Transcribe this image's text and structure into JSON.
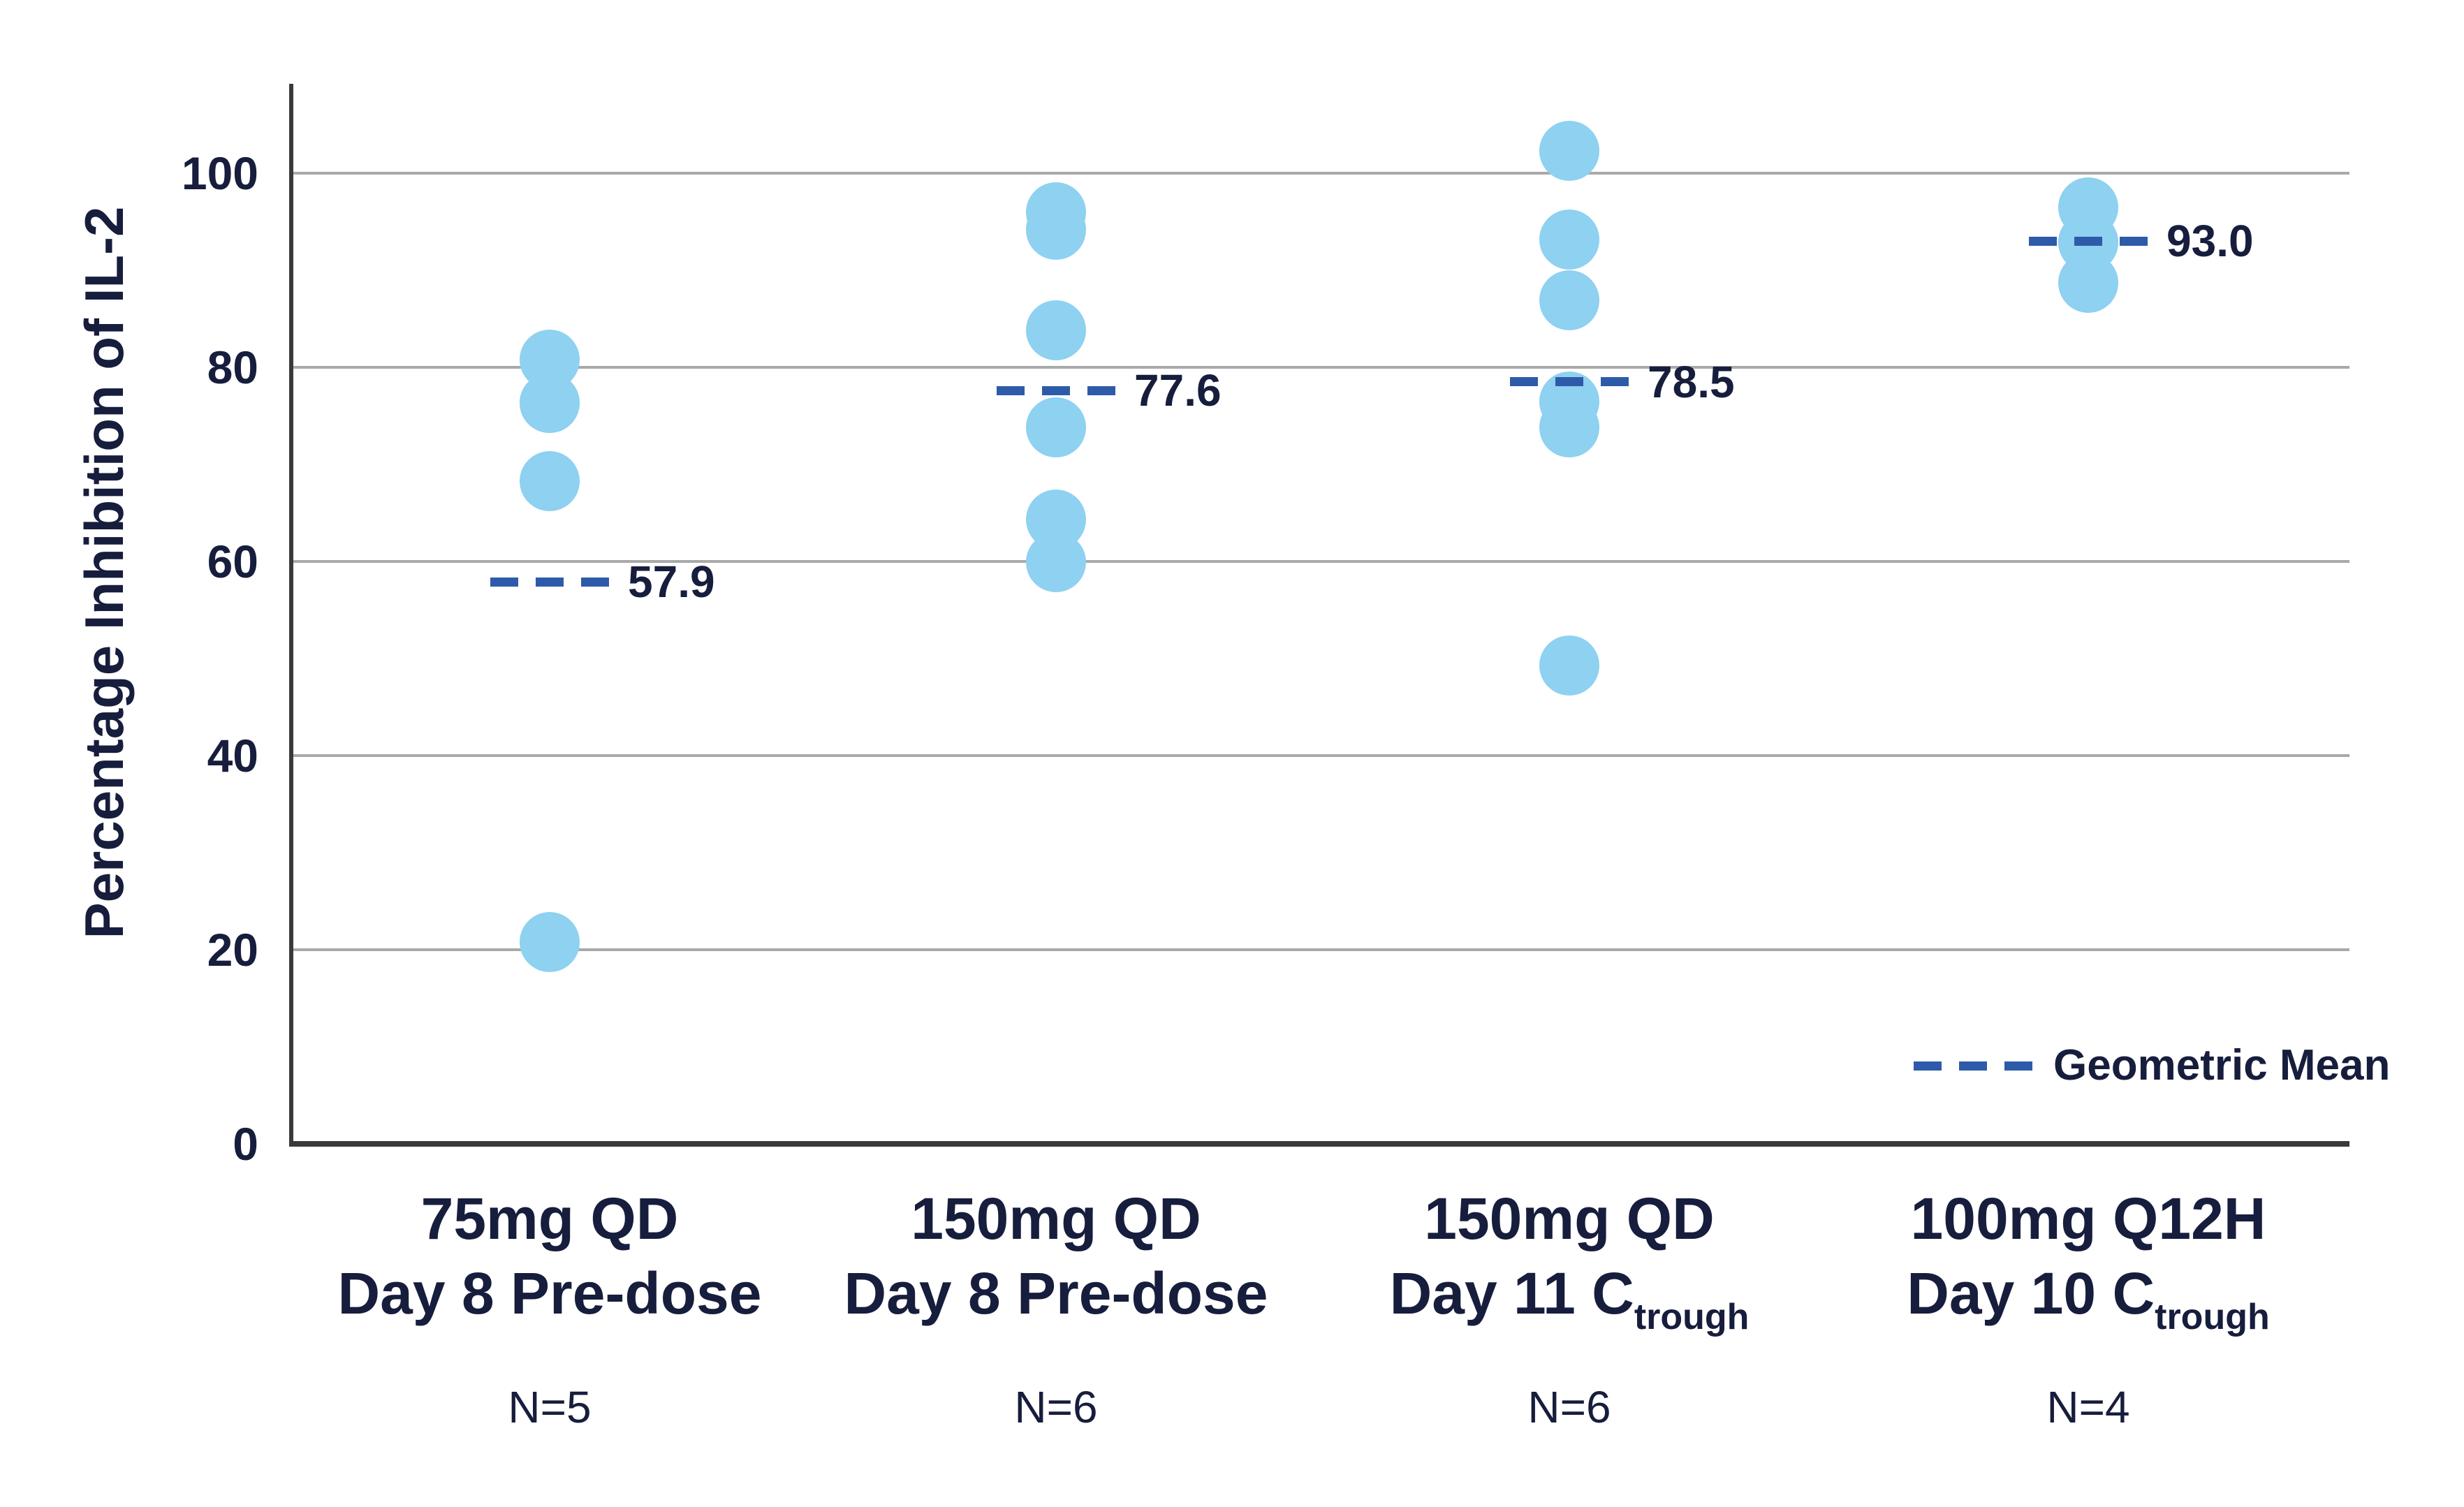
{
  "chart_data": {
    "type": "scatter",
    "title": "",
    "xlabel": "",
    "ylabel": "Percentage Inhibition of IL-2",
    "ylim": [
      0,
      110
    ],
    "yticks": [
      0,
      20,
      40,
      60,
      80,
      100
    ],
    "grid": "horizontal",
    "legend": {
      "label": "Geometric Mean",
      "style": "dashed",
      "position": "bottom-right"
    },
    "groups": [
      {
        "label_line1": "75mg QD",
        "label_line2": "Day 8 Pre-dose",
        "label_line2_sub": "",
        "n_label": "N=5",
        "points": [
          80.8,
          76.3,
          76.3,
          68.3,
          20.8
        ],
        "geometric_mean": 57.9,
        "mean_label": "57.9"
      },
      {
        "label_line1": "150mg QD",
        "label_line2": "Day 8 Pre-dose",
        "label_line2_sub": "",
        "n_label": "N=6",
        "points": [
          96.0,
          94.2,
          83.8,
          73.8,
          64.3,
          59.9
        ],
        "geometric_mean": 77.6,
        "mean_label": "77.6"
      },
      {
        "label_line1": "150mg QD",
        "label_line2": "Day 11 C",
        "label_line2_sub": "trough",
        "n_label": "N=6",
        "points": [
          102.3,
          93.2,
          86.9,
          76.5,
          73.8,
          49.3
        ],
        "geometric_mean": 78.5,
        "mean_label": "78.5"
      },
      {
        "label_line1": "100mg Q12H",
        "label_line2": "Day 10 C",
        "label_line2_sub": "trough",
        "n_label": "N=4",
        "points": [
          96.5,
          92.9,
          92.9,
          88.7
        ],
        "geometric_mean": 93.0,
        "mean_label": "93.0"
      }
    ],
    "colors": {
      "point": "#8ed1f1",
      "mean_line": "#2e5ba9",
      "text": "#171d3c",
      "grid": "#a9a9a9",
      "axis": "#3a3a3a"
    }
  }
}
